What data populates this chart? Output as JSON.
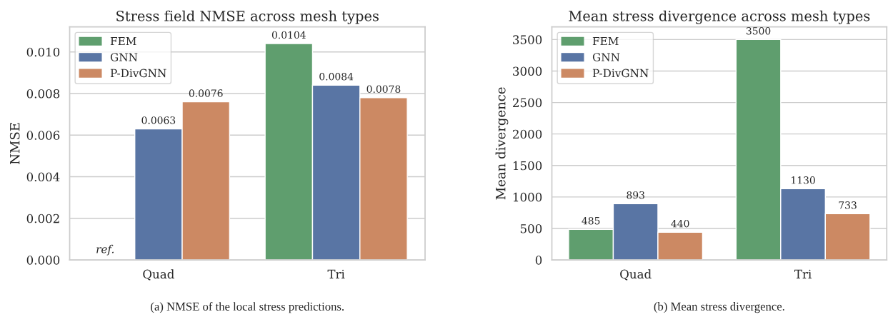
{
  "chart_data": [
    {
      "type": "bar",
      "title": "Stress field NMSE across mesh types",
      "ylabel": "NMSE",
      "categories": [
        "Quad",
        "Tri"
      ],
      "series": [
        {
          "name": "FEM",
          "color": "#5f9e6e",
          "values": [
            null,
            0.0104
          ]
        },
        {
          "name": "GNN",
          "color": "#5975a4",
          "values": [
            0.0063,
            0.0084
          ]
        },
        {
          "name": "P-DivGNN",
          "color": "#cc8963",
          "values": [
            0.0076,
            0.0078
          ]
        }
      ],
      "ylim": [
        0,
        0.0112
      ],
      "yticks": [
        {
          "value": 0,
          "label": "0.000"
        },
        {
          "value": 0.002,
          "label": "0.002"
        },
        {
          "value": 0.004,
          "label": "0.004"
        },
        {
          "value": 0.006,
          "label": "0.006"
        },
        {
          "value": 0.008,
          "label": "0.008"
        },
        {
          "value": 0.01,
          "label": "0.010"
        }
      ],
      "grid": "y",
      "legend": "top left",
      "data_labels": true,
      "annotations": [
        "ref.",
        "(a) NMSE of the local stress predictions."
      ]
    },
    {
      "type": "bar",
      "title": "Mean stress divergence across mesh types",
      "ylabel": "Mean divergence",
      "categories": [
        "Quad",
        "Tri"
      ],
      "series": [
        {
          "name": "FEM",
          "color": "#5f9e6e",
          "values": [
            485,
            3500
          ]
        },
        {
          "name": "GNN",
          "color": "#5975a4",
          "values": [
            893,
            1130
          ]
        },
        {
          "name": "P-DivGNN",
          "color": "#cc8963",
          "values": [
            440,
            733
          ]
        }
      ],
      "ylim": [
        0,
        3700
      ],
      "yticks": [
        0,
        500,
        1000,
        1500,
        2000,
        2500,
        3000,
        3500
      ],
      "grid": "y",
      "legend": "top left",
      "data_labels": true,
      "annotations": [
        "(b) Mean stress divergence."
      ]
    }
  ]
}
